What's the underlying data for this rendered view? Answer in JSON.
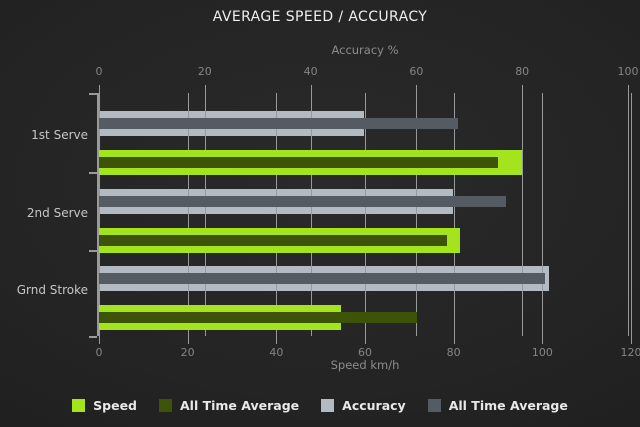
{
  "title": "AVERAGE SPEED / ACCURACY",
  "chart_data": {
    "type": "bar",
    "orientation": "horizontal",
    "grid": true,
    "categories": [
      "1st Serve",
      "2nd Serve",
      "Grnd Stroke"
    ],
    "axes": {
      "top": {
        "label": "Accuracy %",
        "range": [
          0,
          100
        ],
        "ticks": [
          0,
          20,
          40,
          60,
          80,
          100
        ]
      },
      "bottom": {
        "label": "Speed km/h",
        "range": [
          0,
          120
        ],
        "ticks": [
          0,
          20,
          40,
          60,
          80,
          100,
          120
        ]
      }
    },
    "series": [
      {
        "name": "Speed",
        "axis": "bottom",
        "role": "main",
        "color": "#a3e41c",
        "values": [
          95.5,
          81.5,
          54.6
        ]
      },
      {
        "name": "All Time Average",
        "axis": "bottom",
        "role": "overlay",
        "color": "#3d5408",
        "values": [
          90.0,
          78.5,
          71.7
        ]
      },
      {
        "name": "Accuracy",
        "axis": "top",
        "role": "main",
        "color": "#b4bac1",
        "values": [
          50.0,
          67.0,
          85.0
        ]
      },
      {
        "name": "All Time Average",
        "axis": "top",
        "role": "overlay",
        "color": "#555b63",
        "values": [
          67.9,
          77.0,
          84.3
        ]
      }
    ],
    "legend_position": "bottom"
  },
  "legend": {
    "items": [
      {
        "label": "Speed",
        "color": "#a3e41c"
      },
      {
        "label": "All Time Average",
        "color": "#3d5408"
      },
      {
        "label": "Accuracy",
        "color": "#b4bac1"
      },
      {
        "label": "All Time Average",
        "color": "#555b63"
      }
    ]
  },
  "colors": {
    "background": "#222222",
    "gridline": "#969a9a",
    "title_text": "#eeeeee",
    "axis_text": "#8c8c8c",
    "category_text": "#c6c6c6",
    "legend_text": "#e8e8e8"
  }
}
